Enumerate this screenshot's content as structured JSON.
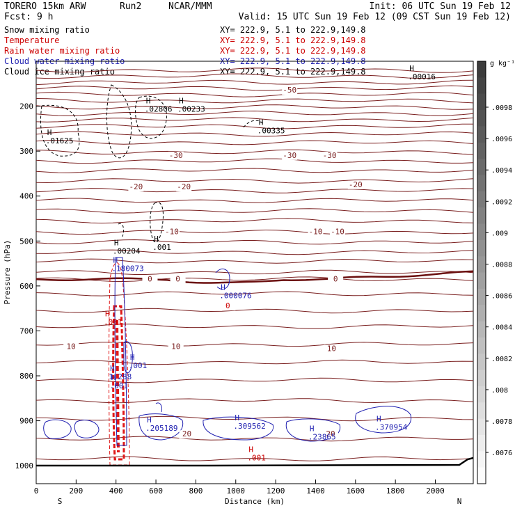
{
  "header": {
    "model": "TORERO   15km ARW",
    "run": "Run2",
    "org": "NCAR/MMM",
    "init": "Init: 06 UTC Sun 19 Feb 12",
    "fcst": "Fcst:     9 h",
    "valid": "Valid: 15 UTC Sun 19 Feb 12 (09 CST Sun 19 Feb 12)"
  },
  "legend": [
    {
      "label": "Snow mixing ratio",
      "xy": "XY= 222.9,  5.1 to 222.9,149.8",
      "color": "#000000"
    },
    {
      "label": "Temperature",
      "xy": "XY= 222.9,  5.1 to 222.9,149.8",
      "color": "#cc0000"
    },
    {
      "label": "Rain water mixing ratio",
      "xy": "XY= 222.9,  5.1 to 222.9,149.8",
      "color": "#cc0000"
    },
    {
      "label": "Cloud water mixing ratio",
      "xy": "XY= 222.9,  5.1 to 222.9,149.8",
      "color": "#1f1fb0"
    },
    {
      "label": "Cloud ice mixing ratio",
      "xy": "XY= 222.9,  5.1 to 222.9,149.8",
      "color": "#000000"
    }
  ],
  "colorbar": {
    "unit": "g kg⁻¹",
    "ticks": [
      ".0098",
      ".0096",
      ".0094",
      ".0092",
      ".009",
      ".0088",
      ".0086",
      ".0084",
      ".0082",
      ".008",
      ".0078",
      ".0076"
    ]
  },
  "colors": {
    "temperature": "#7a1f1f",
    "zero_isotherm": "#6b0f0f",
    "rain": "#e01818",
    "cloud_water": "#1f1fb0",
    "snow": "#000000",
    "label_red": "#cc0000"
  },
  "chart_data": {
    "type": "contour-cross-section",
    "xlabel": "Distance (km)",
    "ylabel": "Pressure (hPa)",
    "xlim": [
      0,
      2190
    ],
    "ylim": [
      1040,
      100
    ],
    "x_ticks": [
      0,
      200,
      400,
      600,
      800,
      1000,
      1200,
      1400,
      1600,
      1800,
      2000
    ],
    "y_ticks": [
      200,
      300,
      400,
      500,
      600,
      700,
      800,
      900,
      1000
    ],
    "x_end_labels": {
      "left": "S",
      "right": "N"
    },
    "isotherm_pressures": [
      120,
      133,
      147,
      160,
      174,
      188,
      202,
      216,
      230,
      245,
      262,
      281,
      302,
      322,
      343,
      366,
      388,
      410,
      433,
      455,
      480,
      502,
      525,
      545,
      570,
      585,
      617,
      655,
      690,
      730,
      770,
      810,
      855,
      895,
      940,
      985
    ],
    "zero_isotherm_pressure": 585,
    "temperature_labels": [
      {
        "text": "-50",
        "x": 1270,
        "p": 170
      },
      {
        "text": "-30",
        "x": 700,
        "p": 315
      },
      {
        "text": "-30",
        "x": 1270,
        "p": 315
      },
      {
        "text": "-30",
        "x": 1470,
        "p": 315
      },
      {
        "text": "-20",
        "x": 500,
        "p": 385
      },
      {
        "text": "-20",
        "x": 740,
        "p": 385
      },
      {
        "text": "-20",
        "x": 1600,
        "p": 380
      },
      {
        "text": "-10",
        "x": 680,
        "p": 485
      },
      {
        "text": "-10",
        "x": 1400,
        "p": 485
      },
      {
        "text": "-10",
        "x": 1510,
        "p": 485
      },
      {
        "text": "0",
        "x": 570,
        "p": 590
      },
      {
        "text": "0",
        "x": 710,
        "p": 590
      },
      {
        "text": "0",
        "x": 1500,
        "p": 590
      },
      {
        "text": "0",
        "x": 960,
        "p": 650
      },
      {
        "text": "10",
        "x": 175,
        "p": 740
      },
      {
        "text": "10",
        "x": 700,
        "p": 740
      },
      {
        "text": "10",
        "x": 1480,
        "p": 745
      },
      {
        "text": "20",
        "x": 755,
        "p": 935
      },
      {
        "text": "20",
        "x": 1475,
        "p": 935
      }
    ],
    "maxima": [
      {
        "text": ".01625",
        "x": 90,
        "p": 283,
        "color": "#000000"
      },
      {
        "text": ".02806",
        "x": 585,
        "p": 212,
        "color": "#000000"
      },
      {
        "text": ".00233",
        "x": 750,
        "p": 212,
        "color": "#000000"
      },
      {
        "text": ".00335",
        "x": 1150,
        "p": 260,
        "color": "#000000"
      },
      {
        "text": ".00016",
        "x": 1905,
        "p": 140,
        "color": "#000000"
      },
      {
        "text": ".00204",
        "x": 425,
        "p": 528,
        "color": "#000000"
      },
      {
        "text": ".001",
        "x": 625,
        "p": 520,
        "color": "#000000"
      },
      {
        "text": ".180073",
        "x": 420,
        "p": 567,
        "color": "#1f1fb0"
      },
      {
        "text": ".000076",
        "x": 960,
        "p": 627,
        "color": "#1f1fb0"
      },
      {
        "text": ".001",
        "x": 380,
        "p": 686,
        "color": "#cc0000"
      },
      {
        "text": ".001",
        "x": 505,
        "p": 783,
        "color": "#1f1fb0"
      },
      {
        "text": "1.288",
        "x": 405,
        "p": 808,
        "color": "#1f1fb0"
      },
      {
        "text": ".001",
        "x": 410,
        "p": 828,
        "color": "#1f1fb0"
      },
      {
        "text": ".205189",
        "x": 590,
        "p": 922,
        "color": "#1f1fb0"
      },
      {
        "text": ".309562",
        "x": 1030,
        "p": 918,
        "color": "#1f1fb0"
      },
      {
        "text": ".23865",
        "x": 1405,
        "p": 942,
        "color": "#1f1fb0"
      },
      {
        "text": ".370954",
        "x": 1740,
        "p": 920,
        "color": "#1f1fb0"
      },
      {
        "text": ".001",
        "x": 1100,
        "p": 988,
        "color": "#cc0000"
      }
    ]
  }
}
